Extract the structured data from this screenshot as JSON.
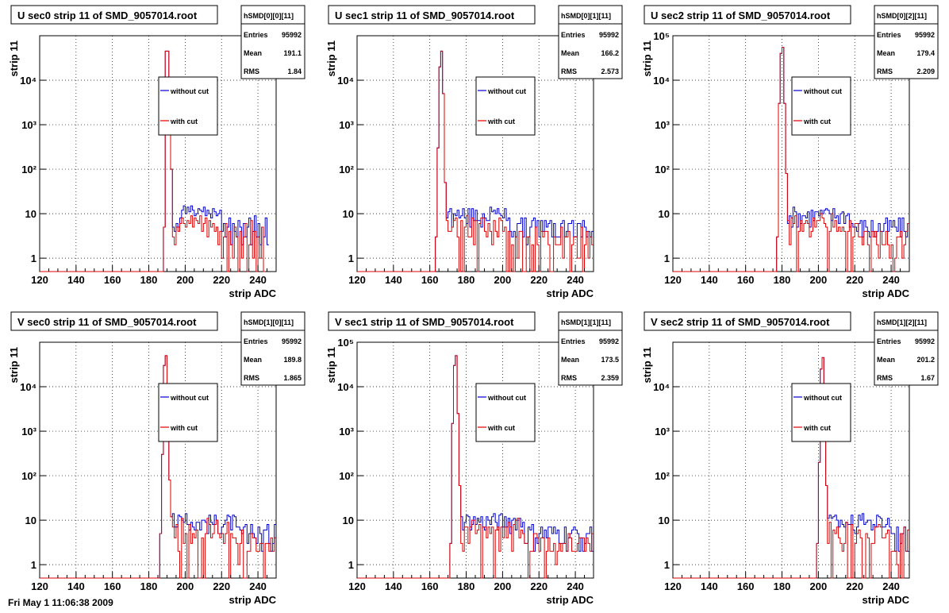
{
  "colors": {
    "without_cut": "#0000cc",
    "with_cut": "#dd0000",
    "grid": "#000000",
    "background": "#ffffff"
  },
  "footer_date": "Fri May  1 11:06:38 2009",
  "legend": {
    "without_cut": "without cut",
    "with_cut": "with cut"
  },
  "stats_labels": {
    "entries": "Entries",
    "mean": "Mean",
    "rms": "RMS"
  },
  "chart_data": [
    {
      "type": "step",
      "title": "U sec0 strip 11 of SMD_9057014.root",
      "xlabel": "strip ADC",
      "ylabel": "strip 11",
      "xlim": [
        120,
        250
      ],
      "ylim": [
        0.5,
        100000
      ],
      "log_y": true,
      "grid": true,
      "xticks": [
        120,
        140,
        160,
        180,
        200,
        220,
        240
      ],
      "yticks": [
        {
          "v": 1,
          "label": "1"
        },
        {
          "v": 10,
          "label": "10"
        },
        {
          "v": 100,
          "label": "10²"
        },
        {
          "v": 1000,
          "label": "10³"
        },
        {
          "v": 10000,
          "label": "10⁴"
        }
      ],
      "stats": {
        "name": "hSMD[0][0][11]",
        "entries": "95992",
        "mean": "191.1",
        "rms": "1.84"
      },
      "legend_position": "center",
      "peak_x": [
        188,
        189,
        190,
        191,
        192
      ],
      "peak_y": [
        5,
        45000,
        45000,
        8000,
        100
      ],
      "noise_start": 193,
      "series": [
        {
          "name": "without cut",
          "values": [
            0.5,
            0.5,
            0.5,
            0.5,
            0.5,
            0.5,
            0.5,
            0.5,
            0.5,
            0.5,
            0.5,
            0.5,
            0.5,
            0.5,
            0.5,
            0.5,
            0.5,
            0.5,
            0.5,
            0.5,
            0.5,
            0.5,
            0.5,
            0.5,
            0.5,
            0.5,
            0.5,
            0.5,
            0.5,
            0.5,
            0.5,
            0.5,
            0.5,
            0.5,
            0.5,
            0.5,
            0.5,
            0.5,
            0.5,
            0.5,
            0.5,
            0.5,
            0.5,
            0.5,
            0.5,
            0.5,
            0.5,
            0.5,
            0.5,
            0.5,
            0.5,
            0.5,
            0.5,
            0.5,
            0.5,
            0.5,
            0.5,
            0.5,
            0.5,
            0.5,
            0.5,
            0.5,
            0.5,
            0.5,
            0.5,
            0.5,
            0.5,
            0.5,
            5,
            45000,
            45000,
            8000,
            100,
            5,
            4,
            6,
            5,
            8,
            12,
            15,
            10,
            14,
            11,
            15,
            12,
            9,
            10,
            13,
            12,
            11,
            14,
            9,
            12,
            10,
            8,
            13,
            11,
            9,
            10,
            12,
            4,
            6,
            3,
            5,
            8,
            2,
            6,
            4,
            3,
            7,
            5,
            2,
            6,
            3,
            5,
            8,
            2,
            4,
            9,
            3,
            6,
            2,
            5,
            3,
            8,
            2
          ]
        },
        {
          "name": "with cut",
          "values": [
            0.5,
            0.5,
            0.5,
            0.5,
            0.5,
            0.5,
            0.5,
            0.5,
            0.5,
            0.5,
            0.5,
            0.5,
            0.5,
            0.5,
            0.5,
            0.5,
            0.5,
            0.5,
            0.5,
            0.5,
            0.5,
            0.5,
            0.5,
            0.5,
            0.5,
            0.5,
            0.5,
            0.5,
            0.5,
            0.5,
            0.5,
            0.5,
            0.5,
            0.5,
            0.5,
            0.5,
            0.5,
            0.5,
            0.5,
            0.5,
            0.5,
            0.5,
            0.5,
            0.5,
            0.5,
            0.5,
            0.5,
            0.5,
            0.5,
            0.5,
            0.5,
            0.5,
            0.5,
            0.5,
            0.5,
            0.5,
            0.5,
            0.5,
            0.5,
            0.5,
            0.5,
            0.5,
            0.5,
            0.5,
            0.5,
            0.5,
            0.5,
            0.5,
            5,
            45000,
            45000,
            8000,
            100,
            3,
            2,
            5,
            4,
            6,
            8,
            6,
            5,
            7,
            6,
            9,
            5,
            8,
            7,
            6,
            9,
            4,
            6,
            8,
            3,
            7,
            5,
            6,
            4,
            5,
            2,
            4,
            1,
            3,
            6,
            0.5,
            4,
            2,
            1,
            5,
            3,
            0.5,
            4,
            1,
            3,
            6,
            0.5,
            2,
            7,
            1,
            4,
            0.5,
            3,
            1,
            5,
            0.5
          ]
        }
      ]
    },
    {
      "type": "step",
      "title": "U sec1 strip 11 of SMD_9057014.root",
      "xlabel": "strip ADC",
      "ylabel": "strip 11",
      "xlim": [
        120,
        250
      ],
      "ylim": [
        0.5,
        100000
      ],
      "log_y": true,
      "grid": true,
      "xticks": [
        120,
        140,
        160,
        180,
        200,
        220,
        240
      ],
      "yticks": [
        {
          "v": 1,
          "label": "1"
        },
        {
          "v": 10,
          "label": "10"
        },
        {
          "v": 100,
          "label": "10²"
        },
        {
          "v": 1000,
          "label": "10³"
        },
        {
          "v": 10000,
          "label": "10⁴"
        }
      ],
      "stats": {
        "name": "hSMD[0][1][11]",
        "entries": "95992",
        "mean": "166.2",
        "rms": "2.573"
      },
      "legend_position": "center",
      "peak_x": [
        163,
        164,
        165,
        166,
        167,
        168
      ],
      "peak_y": [
        3,
        300,
        20000,
        45000,
        5000,
        50
      ],
      "noise_start": 169
    },
    {
      "type": "step",
      "title": "U sec2 strip 11 of SMD_9057014.root",
      "xlabel": "strip ADC",
      "ylabel": "strip 11",
      "xlim": [
        120,
        250
      ],
      "ylim": [
        0.5,
        100000
      ],
      "log_y": true,
      "grid": true,
      "xticks": [
        120,
        140,
        160,
        180,
        200,
        220,
        240
      ],
      "yticks": [
        {
          "v": 1,
          "label": "1"
        },
        {
          "v": 10,
          "label": "10"
        },
        {
          "v": 100,
          "label": "10²"
        },
        {
          "v": 1000,
          "label": "10³"
        },
        {
          "v": 10000,
          "label": "10⁴"
        },
        {
          "v": 100000,
          "label": "10⁵"
        }
      ],
      "stats": {
        "name": "hSMD[0][2][11]",
        "entries": "95992",
        "mean": "179.4",
        "rms": "2.209"
      },
      "legend_position": "center",
      "peak_x": [
        177,
        178,
        179,
        180,
        181,
        182
      ],
      "peak_y": [
        3,
        3000,
        40000,
        55000,
        3000,
        80
      ],
      "noise_start": 183
    },
    {
      "type": "step",
      "title": "V sec0 strip 11 of SMD_9057014.root",
      "xlabel": "strip ADC",
      "ylabel": "strip 11",
      "xlim": [
        120,
        250
      ],
      "ylim": [
        0.5,
        100000
      ],
      "log_y": true,
      "grid": true,
      "xticks": [
        120,
        140,
        160,
        180,
        200,
        220,
        240
      ],
      "yticks": [
        {
          "v": 1,
          "label": "1"
        },
        {
          "v": 10,
          "label": "10"
        },
        {
          "v": 100,
          "label": "10²"
        },
        {
          "v": 1000,
          "label": "10³"
        },
        {
          "v": 10000,
          "label": "10⁴"
        }
      ],
      "stats": {
        "name": "hSMD[1][0][11]",
        "entries": "95992",
        "mean": "189.8",
        "rms": "1.865"
      },
      "legend_position": "center",
      "peak_x": [
        186,
        187,
        188,
        189,
        190,
        191,
        192
      ],
      "peak_y": [
        5,
        300,
        30000,
        50000,
        5000,
        80,
        12
      ],
      "noise_start": 193
    },
    {
      "type": "step",
      "title": "V sec1 strip 11 of SMD_9057014.root",
      "xlabel": "strip ADC",
      "ylabel": "strip 11",
      "xlim": [
        120,
        250
      ],
      "ylim": [
        0.5,
        100000
      ],
      "log_y": true,
      "grid": true,
      "xticks": [
        120,
        140,
        160,
        180,
        200,
        220,
        240
      ],
      "yticks": [
        {
          "v": 1,
          "label": "1"
        },
        {
          "v": 10,
          "label": "10"
        },
        {
          "v": 100,
          "label": "10²"
        },
        {
          "v": 1000,
          "label": "10³"
        },
        {
          "v": 10000,
          "label": "10⁴"
        },
        {
          "v": 100000,
          "label": "10⁵"
        }
      ],
      "stats": {
        "name": "hSMD[1][1][11]",
        "entries": "95992",
        "mean": "173.5",
        "rms": "2.359"
      },
      "legend_position": "center",
      "peak_x": [
        171,
        172,
        173,
        174,
        175,
        176
      ],
      "peak_y": [
        3,
        1500,
        30000,
        50000,
        2500,
        60
      ],
      "noise_start": 177
    },
    {
      "type": "step",
      "title": "V sec2 strip 11 of SMD_9057014.root",
      "xlabel": "strip ADC",
      "ylabel": "strip 11",
      "xlim": [
        120,
        250
      ],
      "ylim": [
        0.5,
        100000
      ],
      "log_y": true,
      "grid": true,
      "xticks": [
        120,
        140,
        160,
        180,
        200,
        220,
        240
      ],
      "yticks": [
        {
          "v": 1,
          "label": "1"
        },
        {
          "v": 10,
          "label": "10"
        },
        {
          "v": 100,
          "label": "10²"
        },
        {
          "v": 1000,
          "label": "10³"
        },
        {
          "v": 10000,
          "label": "10⁴"
        }
      ],
      "stats": {
        "name": "hSMD[1][2][11]",
        "entries": "95992",
        "mean": "201.2",
        "rms": "1.67"
      },
      "legend_position": "center",
      "peak_x": [
        199,
        200,
        201,
        202,
        203,
        204
      ],
      "peak_y": [
        3,
        200,
        25000,
        45000,
        3000,
        60
      ],
      "noise_start": 205
    }
  ]
}
